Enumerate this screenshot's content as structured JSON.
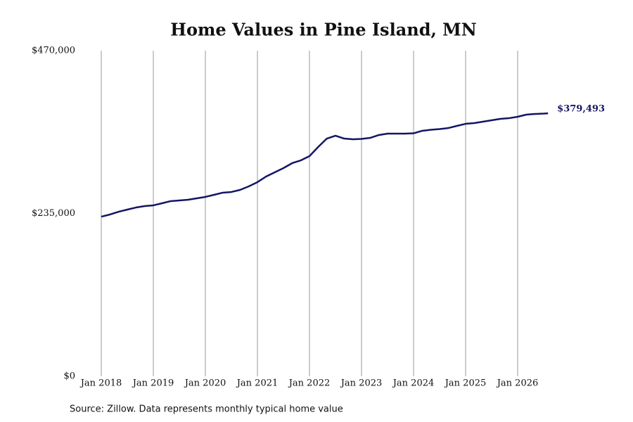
{
  "chart_data": {
    "type": "line",
    "title": "Home Values in Pine Island, MN",
    "source": "Source: Zillow. Data represents monthly typical home value",
    "x": [
      "2018-01",
      "2018-03",
      "2018-05",
      "2018-07",
      "2018-09",
      "2018-11",
      "2019-01",
      "2019-03",
      "2019-05",
      "2019-07",
      "2019-09",
      "2019-11",
      "2020-01",
      "2020-03",
      "2020-05",
      "2020-07",
      "2020-09",
      "2020-11",
      "2021-01",
      "2021-03",
      "2021-05",
      "2021-07",
      "2021-09",
      "2021-11",
      "2022-01",
      "2022-03",
      "2022-05",
      "2022-07",
      "2022-09",
      "2022-11",
      "2023-01",
      "2023-03",
      "2023-05",
      "2023-07",
      "2023-09",
      "2023-11",
      "2024-01",
      "2024-03",
      "2024-05",
      "2024-07",
      "2024-09",
      "2024-11",
      "2025-01",
      "2025-03",
      "2025-05",
      "2025-07",
      "2025-09",
      "2025-11",
      "2026-01",
      "2026-03",
      "2026-05",
      "2026-07",
      "2026-08"
    ],
    "series": [
      {
        "color": "#151565",
        "values": [
          230400,
          233500,
          237500,
          240600,
          243600,
          245700,
          246700,
          249700,
          252800,
          253800,
          254800,
          256800,
          258900,
          261900,
          265000,
          266000,
          269000,
          274100,
          280200,
          288300,
          294400,
          300500,
          307600,
          311600,
          317700,
          330900,
          343100,
          347200,
          343100,
          342100,
          342600,
          344100,
          348200,
          350200,
          350200,
          350200,
          350700,
          354300,
          355800,
          356800,
          358300,
          361400,
          364400,
          365400,
          367500,
          369500,
          371500,
          372500,
          374600,
          377600,
          378600,
          379100,
          379493
        ]
      }
    ],
    "end_label": "$379,493",
    "ylim": [
      0,
      470000
    ],
    "yticks": [
      {
        "value": 0,
        "label": "$0"
      },
      {
        "value": 235000,
        "label": "$235,000"
      },
      {
        "value": 470000,
        "label": "$470,000"
      }
    ],
    "xticks": [
      {
        "value": "2018-01",
        "label": "Jan 2018"
      },
      {
        "value": "2019-01",
        "label": "Jan 2019"
      },
      {
        "value": "2020-01",
        "label": "Jan 2020"
      },
      {
        "value": "2021-01",
        "label": "Jan 2021"
      },
      {
        "value": "2022-01",
        "label": "Jan 2022"
      },
      {
        "value": "2023-01",
        "label": "Jan 2023"
      },
      {
        "value": "2024-01",
        "label": "Jan 2024"
      },
      {
        "value": "2025-01",
        "label": "Jan 2025"
      },
      {
        "value": "2026-01",
        "label": "Jan 2026"
      }
    ],
    "grid": "x"
  }
}
